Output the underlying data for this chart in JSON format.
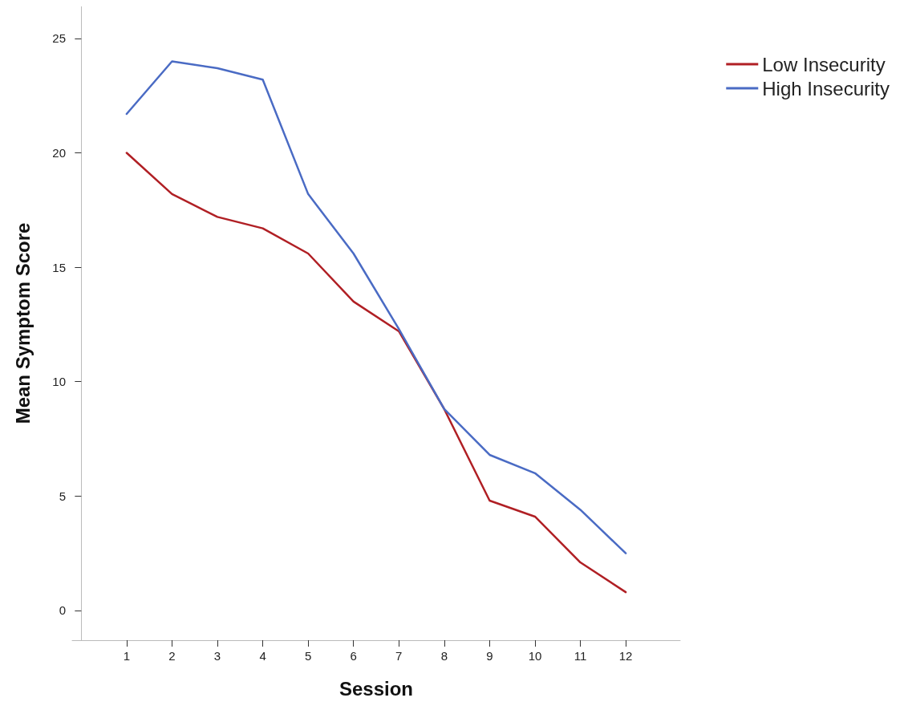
{
  "chart_data": {
    "type": "line",
    "xlabel": "Session",
    "ylabel": "Mean Symptom Score",
    "x": [
      1,
      2,
      3,
      4,
      5,
      6,
      7,
      8,
      9,
      10,
      11,
      12
    ],
    "series": [
      {
        "name": "Low Insecurity",
        "color": "#b01f24",
        "values": [
          20.0,
          18.2,
          17.2,
          16.7,
          15.6,
          13.5,
          12.2,
          8.8,
          4.8,
          4.1,
          2.1,
          0.8
        ]
      },
      {
        "name": "High Insecurity",
        "color": "#4a6bc4",
        "values": [
          21.7,
          24.0,
          23.7,
          23.2,
          18.2,
          15.6,
          12.3,
          8.8,
          6.8,
          6.0,
          4.4,
          2.5
        ]
      }
    ],
    "xlim": [
      -0.2,
      13.2
    ],
    "xticks": [
      1,
      2,
      3,
      4,
      5,
      6,
      7,
      8,
      9,
      10,
      11,
      12
    ],
    "ylim": [
      -1.3,
      26.4
    ],
    "yticks": [
      0,
      5,
      10,
      15,
      20,
      25
    ],
    "grid": false,
    "legend": "top right",
    "marker": "none",
    "line_style": "solid"
  }
}
